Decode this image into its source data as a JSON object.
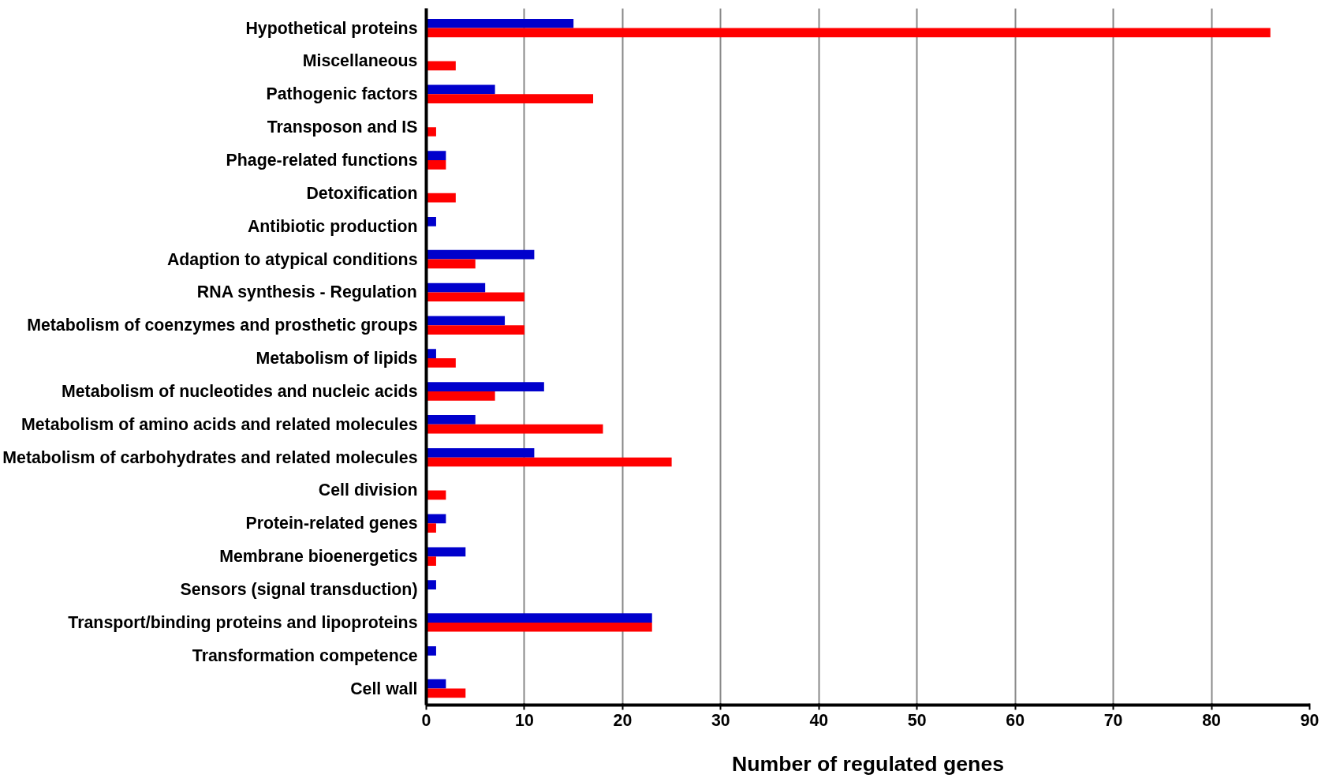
{
  "chart_data": {
    "type": "bar",
    "orientation": "horizontal",
    "xlabel": "Number of regulated genes",
    "categories": [
      "Hypothetical proteins",
      "Miscellaneous",
      "Pathogenic factors",
      "Transposon and IS",
      "Phage-related functions",
      "Detoxification",
      "Antibiotic production",
      "Adaption to atypical conditions",
      "RNA synthesis - Regulation",
      "Metabolism of coenzymes and prosthetic groups",
      "Metabolism of lipids",
      "Metabolism of nucleotides and nucleic acids",
      "Metabolism of amino acids and related molecules",
      "Metabolism of carbohydrates and related molecules",
      "Cell division",
      "Protein-related genes",
      "Membrane bioenergetics",
      "Sensors (signal transduction)",
      "Transport/binding proteins and lipoproteins",
      "Transformation competence",
      "Cell wall"
    ],
    "series": [
      {
        "color": "#0000cc",
        "values": [
          15,
          0,
          7,
          0,
          2,
          0,
          1,
          11,
          6,
          8,
          1,
          12,
          5,
          11,
          0,
          2,
          4,
          1,
          23,
          1,
          2
        ]
      },
      {
        "color": "#ff0000",
        "values": [
          86,
          3,
          17,
          1,
          2,
          3,
          0,
          5,
          10,
          10,
          3,
          7,
          18,
          25,
          2,
          1,
          1,
          0,
          23,
          0,
          4
        ]
      }
    ],
    "xlim": [
      0,
      90
    ],
    "xticks": [
      0,
      10,
      20,
      30,
      40,
      50,
      60,
      70,
      80,
      90
    ],
    "grid": "x"
  }
}
